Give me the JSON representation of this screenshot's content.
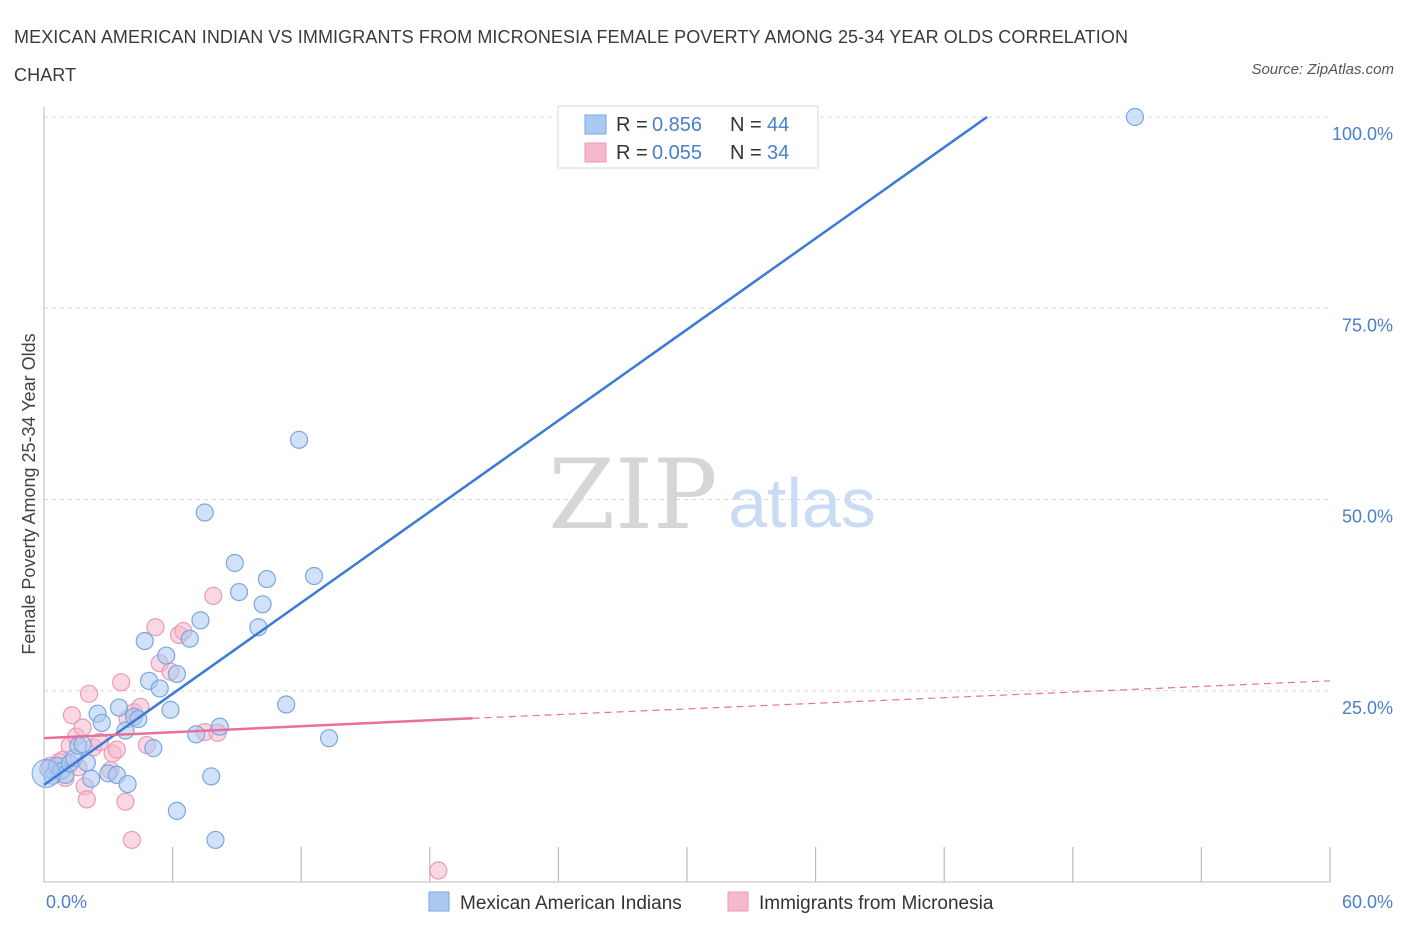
{
  "header": {
    "title": "MEXICAN AMERICAN INDIAN VS IMMIGRANTS FROM MICRONESIA FEMALE POVERTY AMONG 25-34 YEAR OLDS CORRELATION CHART",
    "source": "Source: ZipAtlas.com"
  },
  "watermark": {
    "zip": "ZIP",
    "atlas": "atlas"
  },
  "colors": {
    "blue": "#3a7bd5",
    "blue_fill": "#a9c8f2",
    "pink": "#e8709a",
    "pink_fill": "#f5b8cc",
    "axis_value": "#4a7fcb",
    "grid": "#d9d9d9"
  },
  "chart_data": {
    "type": "scatter",
    "title": "MEXICAN AMERICAN INDIAN VS IMMIGRANTS FROM MICRONESIA FEMALE POVERTY AMONG 25-34 YEAR OLDS CORRELATION CHART",
    "xlabel": "",
    "ylabel": "Female Poverty Among 25-34 Year Olds",
    "xlim": [
      0,
      60
    ],
    "ylim": [
      0,
      100
    ],
    "x_tick_labels": [
      "0.0%",
      "60.0%"
    ],
    "y_tick_labels": [
      "100.0%",
      "75.0%",
      "50.0%",
      "25.0%"
    ],
    "y_ticks": [
      100,
      75,
      50,
      25
    ],
    "grid": true,
    "legend_position": "bottom",
    "stats_box": [
      {
        "r_label": "R =",
        "r_value": "0.856",
        "n_label": "N =",
        "n_value": "44"
      },
      {
        "r_label": "R =",
        "r_value": "0.055",
        "n_label": "N =",
        "n_value": "34"
      }
    ],
    "series": [
      {
        "name": "Mexican American Indians",
        "color": "#3a7bd5",
        "trend": {
          "x": [
            0.0,
            44.0
          ],
          "y": [
            12.7,
            100.0
          ],
          "dashed_extension": false
        },
        "points": [
          {
            "x": 0.2,
            "y": 14.8
          },
          {
            "x": 0.4,
            "y": 13.9
          },
          {
            "x": 0.6,
            "y": 15.2
          },
          {
            "x": 0.8,
            "y": 14.5
          },
          {
            "x": 1.0,
            "y": 14.0
          },
          {
            "x": 1.2,
            "y": 15.5
          },
          {
            "x": 1.4,
            "y": 16.2
          },
          {
            "x": 1.6,
            "y": 17.8
          },
          {
            "x": 1.8,
            "y": 18.0
          },
          {
            "x": 2.0,
            "y": 15.6
          },
          {
            "x": 2.2,
            "y": 13.5
          },
          {
            "x": 2.5,
            "y": 22.0
          },
          {
            "x": 2.7,
            "y": 20.8
          },
          {
            "x": 3.0,
            "y": 14.2
          },
          {
            "x": 3.4,
            "y": 14.0
          },
          {
            "x": 3.5,
            "y": 22.8
          },
          {
            "x": 3.8,
            "y": 19.8
          },
          {
            "x": 3.9,
            "y": 12.8
          },
          {
            "x": 4.2,
            "y": 21.6
          },
          {
            "x": 4.4,
            "y": 21.3
          },
          {
            "x": 4.7,
            "y": 31.5
          },
          {
            "x": 4.9,
            "y": 26.3
          },
          {
            "x": 5.1,
            "y": 17.5
          },
          {
            "x": 5.4,
            "y": 25.3
          },
          {
            "x": 5.7,
            "y": 29.6
          },
          {
            "x": 5.9,
            "y": 22.5
          },
          {
            "x": 6.2,
            "y": 27.2
          },
          {
            "x": 6.2,
            "y": 9.3
          },
          {
            "x": 6.8,
            "y": 31.8
          },
          {
            "x": 7.1,
            "y": 19.3
          },
          {
            "x": 7.3,
            "y": 34.2
          },
          {
            "x": 7.5,
            "y": 48.3
          },
          {
            "x": 7.8,
            "y": 13.8
          },
          {
            "x": 8.0,
            "y": 5.5
          },
          {
            "x": 8.2,
            "y": 20.3
          },
          {
            "x": 8.9,
            "y": 41.7
          },
          {
            "x": 9.1,
            "y": 37.9
          },
          {
            "x": 10.0,
            "y": 33.3
          },
          {
            "x": 10.2,
            "y": 36.3
          },
          {
            "x": 10.4,
            "y": 39.6
          },
          {
            "x": 11.3,
            "y": 23.2
          },
          {
            "x": 11.9,
            "y": 57.8
          },
          {
            "x": 12.6,
            "y": 40.0
          },
          {
            "x": 13.3,
            "y": 18.8
          },
          {
            "x": 50.9,
            "y": 100.0
          }
        ]
      },
      {
        "name": "Immigrants from Micronesia",
        "color": "#e8709a",
        "trend": {
          "x": [
            0.0,
            20.0
          ],
          "y": [
            18.8,
            21.4
          ],
          "dashed_to": [
            60.0,
            26.3
          ]
        },
        "points": [
          {
            "x": 0.3,
            "y": 15.2
          },
          {
            "x": 0.5,
            "y": 14.3
          },
          {
            "x": 0.7,
            "y": 15.7
          },
          {
            "x": 0.9,
            "y": 16.0
          },
          {
            "x": 1.0,
            "y": 13.6
          },
          {
            "x": 1.2,
            "y": 17.8
          },
          {
            "x": 1.3,
            "y": 21.8
          },
          {
            "x": 1.5,
            "y": 19.0
          },
          {
            "x": 1.6,
            "y": 15.0
          },
          {
            "x": 1.8,
            "y": 20.2
          },
          {
            "x": 1.9,
            "y": 12.5
          },
          {
            "x": 2.0,
            "y": 10.8
          },
          {
            "x": 2.1,
            "y": 24.6
          },
          {
            "x": 2.3,
            "y": 17.6
          },
          {
            "x": 2.6,
            "y": 18.3
          },
          {
            "x": 3.1,
            "y": 14.6
          },
          {
            "x": 3.2,
            "y": 16.8
          },
          {
            "x": 3.4,
            "y": 17.3
          },
          {
            "x": 3.6,
            "y": 26.1
          },
          {
            "x": 3.8,
            "y": 10.5
          },
          {
            "x": 3.9,
            "y": 21.3
          },
          {
            "x": 4.2,
            "y": 22.2
          },
          {
            "x": 4.1,
            "y": 5.5
          },
          {
            "x": 4.5,
            "y": 22.9
          },
          {
            "x": 4.8,
            "y": 17.9
          },
          {
            "x": 5.2,
            "y": 33.3
          },
          {
            "x": 5.4,
            "y": 28.6
          },
          {
            "x": 5.9,
            "y": 27.5
          },
          {
            "x": 6.3,
            "y": 32.3
          },
          {
            "x": 6.5,
            "y": 32.8
          },
          {
            "x": 7.5,
            "y": 19.6
          },
          {
            "x": 7.9,
            "y": 37.4
          },
          {
            "x": 8.1,
            "y": 19.5
          },
          {
            "x": 18.4,
            "y": 1.5
          }
        ]
      }
    ]
  }
}
